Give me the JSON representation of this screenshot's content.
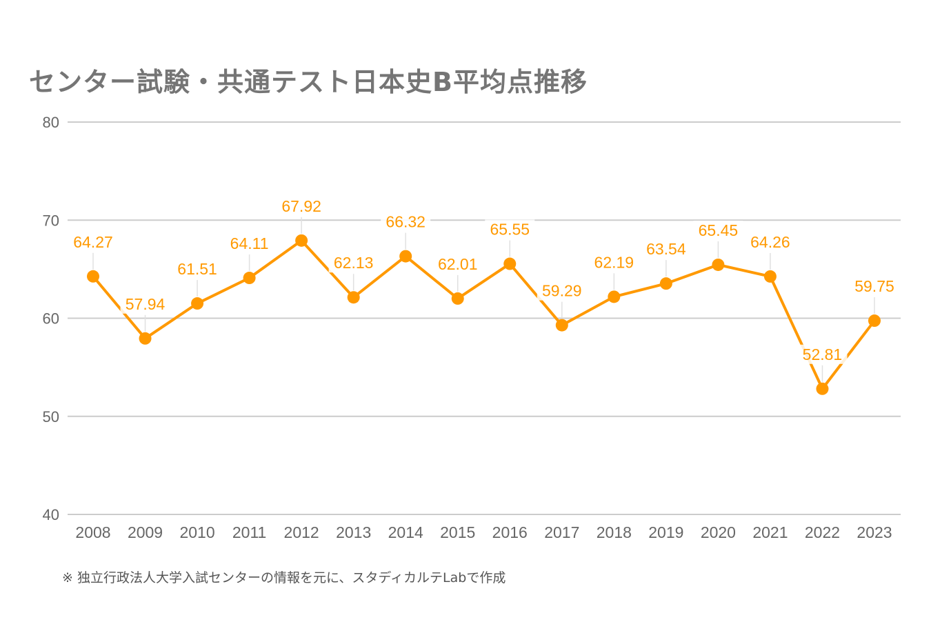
{
  "title": "センター試験・共通テスト日本史B平均点推移",
  "footnote": "※ 独立行政法人大学入試センターの情報を元に、スタディカルテLabで作成",
  "colors": {
    "series": "#ff9900",
    "grid": "#cccccc",
    "leader": "#e0e0e0",
    "axis_text": "#666666",
    "title": "#757575"
  },
  "chart_data": {
    "type": "line",
    "title": "センター試験・共通テスト日本史B平均点推移",
    "xlabel": "",
    "ylabel": "",
    "ylim": [
      40,
      80
    ],
    "yticks": [
      40,
      50,
      60,
      70,
      80
    ],
    "grid": true,
    "legend": "none",
    "categories": [
      "2008",
      "2009",
      "2010",
      "2011",
      "2012",
      "2013",
      "2014",
      "2015",
      "2016",
      "2017",
      "2018",
      "2019",
      "2020",
      "2021",
      "2022",
      "2023"
    ],
    "series": [
      {
        "name": "日本史B平均点",
        "values": [
          64.27,
          57.94,
          61.51,
          64.11,
          67.92,
          62.13,
          66.32,
          62.01,
          65.55,
          59.29,
          62.19,
          63.54,
          65.45,
          64.26,
          52.81,
          59.75
        ],
        "labels": [
          "64.27",
          "57.94",
          "61.51",
          "64.11",
          "67.92",
          "62.13",
          "66.32",
          "62.01",
          "65.55",
          "59.29",
          "62.19",
          "63.54",
          "65.45",
          "64.26",
          "52.81",
          "59.75"
        ]
      }
    ]
  }
}
